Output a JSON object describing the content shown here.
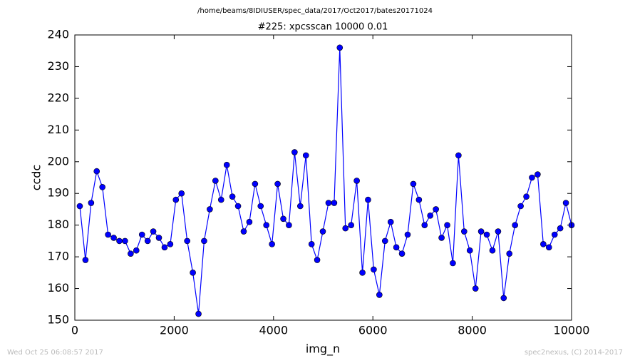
{
  "chart_data": {
    "type": "line",
    "suptitle": "/home/beams/8IDIUSER/spec_data/2017/Oct2017/bates20171024",
    "title": "#225: xpcsscan 10000 0.01",
    "xlabel": "img_n",
    "ylabel": "ccdc",
    "footer_left": "Wed Oct 25 06:08:57 2017",
    "footer_right": "spec2nexus, (C) 2014-2017",
    "x": [
      100,
      214,
      328,
      441,
      555,
      669,
      783,
      897,
      1010,
      1124,
      1238,
      1352,
      1466,
      1579,
      1693,
      1807,
      1921,
      2034,
      2148,
      2262,
      2376,
      2490,
      2603,
      2717,
      2831,
      2945,
      3059,
      3172,
      3286,
      3400,
      3514,
      3628,
      3741,
      3855,
      3969,
      4083,
      4197,
      4310,
      4424,
      4538,
      4652,
      4766,
      4879,
      4993,
      5107,
      5221,
      5334,
      5448,
      5562,
      5676,
      5790,
      5903,
      6017,
      6131,
      6245,
      6359,
      6472,
      6586,
      6700,
      6814,
      6928,
      7041,
      7155,
      7269,
      7383,
      7497,
      7610,
      7724,
      7838,
      7952,
      8066,
      8179,
      8293,
      8407,
      8521,
      8634,
      8748,
      8862,
      8976,
      9090,
      9203,
      9317,
      9431,
      9545,
      9659,
      9772,
      9886,
      10000
    ],
    "series": [
      {
        "color": "#0000ff",
        "values": [
          186,
          169,
          187,
          197,
          192,
          177,
          176,
          175,
          175,
          171,
          172,
          177,
          175,
          178,
          176,
          173,
          174,
          188,
          190,
          175,
          165,
          152,
          175,
          185,
          194,
          188,
          199,
          189,
          186,
          178,
          181,
          193,
          186,
          180,
          174,
          193,
          182,
          180,
          203,
          186,
          202,
          174,
          169,
          178,
          187,
          187,
          236,
          179,
          180,
          194,
          165,
          188,
          166,
          158,
          175,
          181,
          173,
          171,
          177,
          193,
          188,
          180,
          183,
          185,
          176,
          180,
          168,
          202,
          178,
          172,
          160,
          178,
          177,
          172,
          178,
          157,
          171,
          180,
          186,
          189,
          195,
          196,
          174,
          173,
          177,
          179,
          187,
          180
        ]
      }
    ],
    "xlim": [
      0,
      10000
    ],
    "xticks": [
      0,
      2000,
      4000,
      6000,
      8000,
      10000
    ],
    "ylim": [
      150,
      240
    ],
    "yticks": [
      150,
      160,
      170,
      180,
      190,
      200,
      210,
      220,
      230,
      240
    ],
    "grid": false
  }
}
